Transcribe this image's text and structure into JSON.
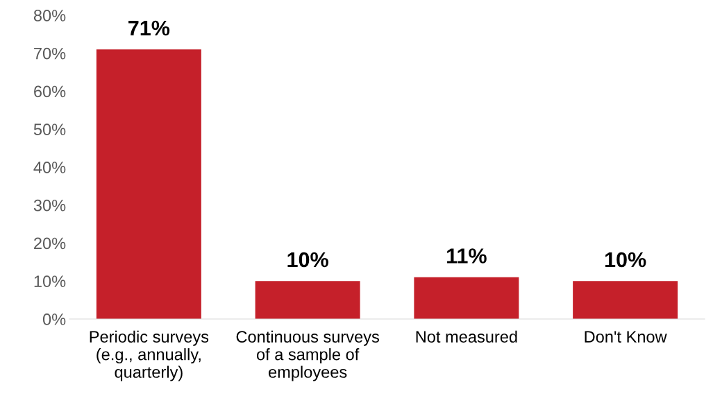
{
  "chart_data": {
    "type": "bar",
    "categories": [
      "Periodic surveys\n(e.g., annually,\nquarterly)",
      "Continuous surveys\nof a sample of\nemployees",
      "Not measured",
      "Don't Know"
    ],
    "values": [
      71,
      10,
      11,
      10
    ],
    "value_labels": [
      "71%",
      "10%",
      "11%",
      "10%"
    ],
    "color": "#c5202a",
    "ylim": [
      0,
      80
    ],
    "yticks": [
      {
        "value": 0,
        "label": "0%"
      },
      {
        "value": 10,
        "label": "10%"
      },
      {
        "value": 20,
        "label": "20%"
      },
      {
        "value": 30,
        "label": "30%"
      },
      {
        "value": 40,
        "label": "40%"
      },
      {
        "value": 50,
        "label": "50%"
      },
      {
        "value": 60,
        "label": "60%"
      },
      {
        "value": 70,
        "label": "70%"
      },
      {
        "value": 80,
        "label": "80%"
      }
    ],
    "grid": false,
    "legend": false
  }
}
